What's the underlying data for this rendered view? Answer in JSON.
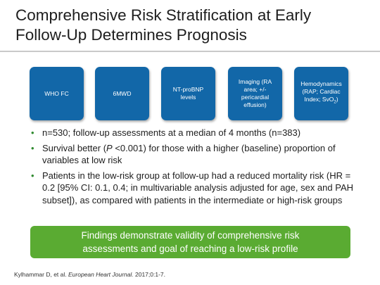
{
  "slide": {
    "title_line1": "Comprehensive Risk Stratification at Early",
    "title_line2": "Follow-Up Determines Prognosis"
  },
  "tiles": [
    {
      "line1": "WHO FC",
      "line2": "",
      "line3": "",
      "line4": ""
    },
    {
      "line1": "6MWD",
      "line2": "",
      "line3": "",
      "line4": ""
    },
    {
      "line1": "NT-proBNP",
      "line2": "levels",
      "line3": "",
      "line4": ""
    },
    {
      "line1": "Imaging (RA",
      "line2": "area; +/-",
      "line3": "pericardial",
      "line4": "effusion)"
    },
    {
      "line1": "Hemodynamics",
      "line2": "(RAP; Cardiac",
      "line3": "Index; SvO",
      "sub": "2",
      "close": ")"
    }
  ],
  "bullets": {
    "b1": "n=530; follow-up assessments at a median of 4 months (n=383)",
    "b2_pre": "Survival better (",
    "b2_p": "P",
    "b2_post": " <0.001) for those with a higher (baseline) proportion of variables at low risk",
    "b3": "Patients in the low-risk group at follow-up had a reduced mortality risk (HR = 0.2 [95% CI: 0.1, 0.4; in multivariable analysis adjusted for age, sex and PAH subset]), as compared with patients in the intermediate or high-risk groups"
  },
  "callout": {
    "line1": "Findings demonstrate validity of comprehensive risk",
    "line2": "assessments and goal of reaching a low-risk profile"
  },
  "citation": {
    "authors": "Kylhammar D, et al. ",
    "journal": "European Heart Journal.",
    "details": " 2017;0:1-7."
  },
  "colors": {
    "tile_blue": "#1267a8",
    "callout_green": "#5aab32",
    "bullet_green": "#2f8a2f"
  }
}
